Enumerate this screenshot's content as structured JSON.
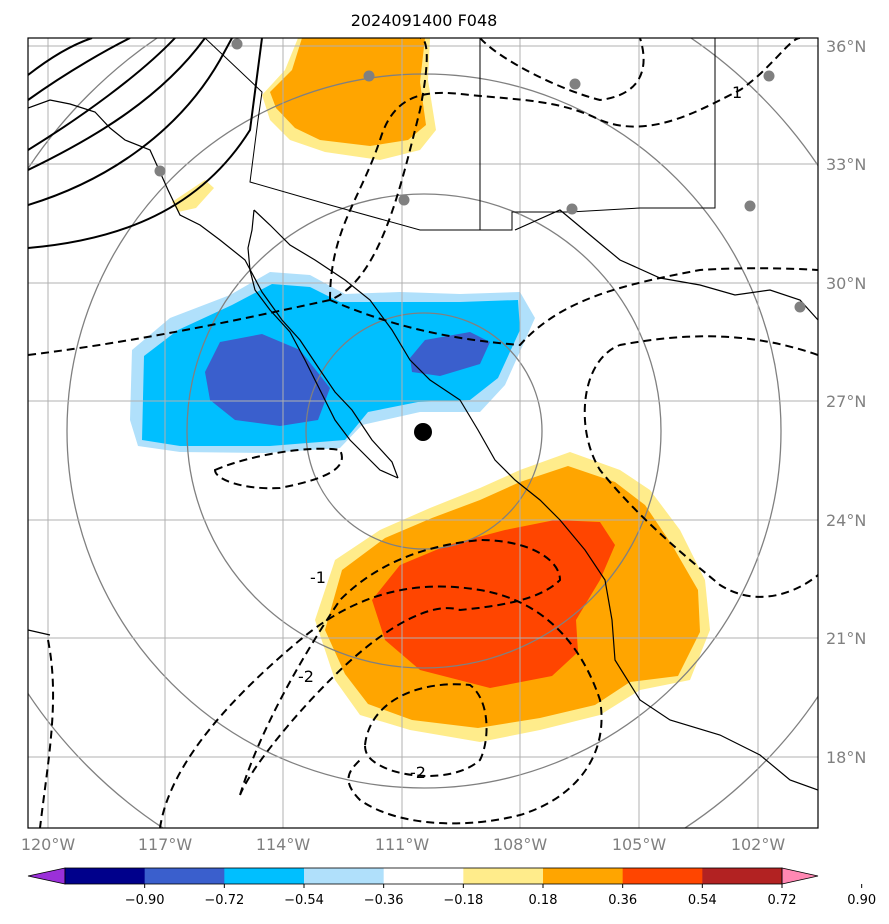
{
  "title": "2024091400 F048",
  "lat_labels": [
    "36°N",
    "33°N",
    "30°N",
    "27°N",
    "24°N",
    "21°N",
    "18°N"
  ],
  "lon_labels": [
    "120°W",
    "117°W",
    "114°W",
    "111°W",
    "108°W",
    "105°W",
    "102°W"
  ],
  "colorbar": {
    "ticks": [
      "−0.90",
      "−0.72",
      "−0.54",
      "−0.36",
      "−0.18",
      "0.18",
      "0.36",
      "0.54",
      "0.72",
      "0.90"
    ],
    "colors": [
      "#9b30d9",
      "#00008b",
      "#3a5fcd",
      "#00bfff",
      "#b0e0fb",
      "#ffffff",
      "#ffec8b",
      "#ffa500",
      "#ff4500",
      "#b22222",
      "#ff88b3"
    ]
  },
  "contour_labels": [
    "1",
    "-1",
    "-2",
    "-2"
  ],
  "center_marker": {
    "lat": 26.7,
    "lon": -110.5
  }
}
